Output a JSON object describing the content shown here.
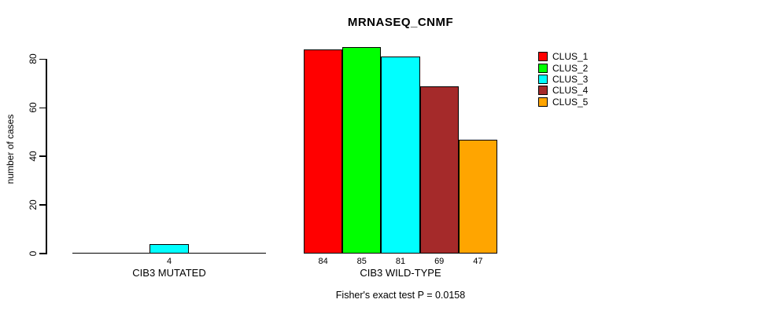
{
  "title": "MRNASEQ_CNMF",
  "y_axis": {
    "label": "number of cases",
    "ticks": [
      0,
      20,
      40,
      60,
      80
    ]
  },
  "footer": "Fisher's exact test P = 0.0158",
  "chart_data": {
    "type": "bar",
    "title": "MRNASEQ_CNMF",
    "xlabel": "",
    "ylabel": "number of cases",
    "ylim": [
      0,
      85
    ],
    "yticks": [
      0,
      20,
      40,
      60,
      80
    ],
    "grid": false,
    "legend_position": "top-right",
    "bar_borders": true,
    "categories": [
      "CIB3 MUTATED",
      "CIB3 WILD-TYPE"
    ],
    "series": [
      {
        "name": "CLUS_1",
        "color": "#FF0000",
        "values": [
          0,
          84
        ]
      },
      {
        "name": "CLUS_2",
        "color": "#00FF00",
        "values": [
          0,
          85
        ]
      },
      {
        "name": "CLUS_3",
        "color": "#00FFFF",
        "values": [
          4,
          81
        ]
      },
      {
        "name": "CLUS_4",
        "color": "#A52A2A",
        "values": [
          0,
          69
        ]
      },
      {
        "name": "CLUS_5",
        "color": "#FFA500",
        "values": [
          0,
          47
        ]
      }
    ],
    "annotation": "Fisher's exact test P = 0.0158"
  }
}
